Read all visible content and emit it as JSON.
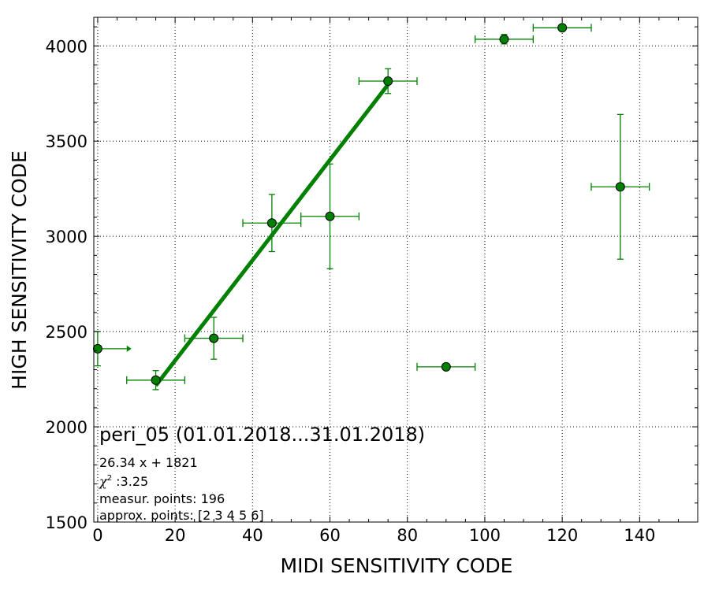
{
  "chart_data": {
    "type": "scatter",
    "title": "peri_05 (01.01.2018...31.01.2018)",
    "xlabel": "MIDI SENSITIVITY CODE",
    "ylabel": "HIGH SENSITIVITY CODE",
    "xlim": [
      -1,
      155
    ],
    "ylim": [
      1500,
      4150
    ],
    "x_ticks": [
      0,
      20,
      40,
      60,
      80,
      100,
      120,
      140
    ],
    "y_ticks": [
      1500,
      2000,
      2500,
      3000,
      3500,
      4000
    ],
    "grid": true,
    "color": "#008000",
    "points": [
      {
        "x": 0,
        "y": 2410,
        "xerr": 7.5,
        "yerr": 90,
        "xerr_one_sided": true,
        "x_arrow": true
      },
      {
        "x": 15,
        "y": 2245,
        "xerr": 7.5,
        "yerr": 50
      },
      {
        "x": 30,
        "y": 2465,
        "xerr": 7.5,
        "yerr": 110
      },
      {
        "x": 45,
        "y": 3070,
        "xerr": 7.5,
        "yerr": 150
      },
      {
        "x": 60,
        "y": 3105,
        "xerr": 7.5,
        "yerr": 275
      },
      {
        "x": 75,
        "y": 3815,
        "xerr": 7.5,
        "yerr": 65
      },
      {
        "x": 90,
        "y": 2315,
        "xerr": 7.5,
        "yerr": 0
      },
      {
        "x": 105,
        "y": 4035,
        "xerr": 7.5,
        "yerr": 25
      },
      {
        "x": 120,
        "y": 4095,
        "xerr": 7.5,
        "yerr": 0
      },
      {
        "x": 135,
        "y": 3260,
        "xerr": 7.5,
        "yerr": 380
      }
    ],
    "fit": {
      "slope": 26.34,
      "intercept": 1821,
      "x_range": [
        15,
        75
      ]
    },
    "annotations": {
      "equation": "26.34 x + 1821",
      "chi2_label": "χ",
      "chi2_sup": "2",
      "chi2_value": " :3.25",
      "measur_points": "measur. points: 196",
      "approx_points": "approx. points: [2 3 4 5 6]"
    }
  }
}
